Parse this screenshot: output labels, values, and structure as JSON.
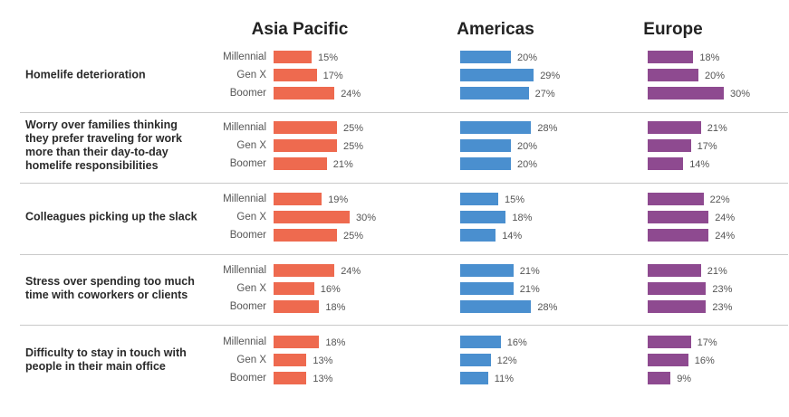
{
  "chart_data": {
    "type": "bar",
    "regions": [
      "Asia Pacific",
      "Americas",
      "Europe"
    ],
    "generations": [
      "Millennial",
      "Gen X",
      "Boomer"
    ],
    "colors": {
      "Asia Pacific": "#ee6a4f",
      "Americas": "#4a8fcf",
      "Europe": "#8e4a90"
    },
    "unit": "%",
    "categories": [
      {
        "label": "Homelife deterioration",
        "values": {
          "Asia Pacific": [
            15,
            17,
            24
          ],
          "Americas": [
            20,
            29,
            27
          ],
          "Europe": [
            18,
            20,
            30
          ]
        }
      },
      {
        "label": "Worry over families thinking\nthey prefer traveling for work\nmore than their day-to-day\nhomelife responsibilities",
        "values": {
          "Asia Pacific": [
            25,
            25,
            21
          ],
          "Americas": [
            28,
            20,
            20
          ],
          "Europe": [
            21,
            17,
            14
          ]
        }
      },
      {
        "label": "Colleagues picking up the slack",
        "values": {
          "Asia Pacific": [
            19,
            30,
            25
          ],
          "Americas": [
            15,
            18,
            14
          ],
          "Europe": [
            22,
            24,
            24
          ]
        }
      },
      {
        "label": "Stress over spending too much\ntime with coworkers or clients",
        "values": {
          "Asia Pacific": [
            24,
            16,
            18
          ],
          "Americas": [
            21,
            21,
            28
          ],
          "Europe": [
            21,
            23,
            23
          ]
        }
      },
      {
        "label": "Difficulty to stay in touch with\npeople in their main office",
        "values": {
          "Asia Pacific": [
            18,
            13,
            13
          ],
          "Americas": [
            16,
            12,
            11
          ],
          "Europe": [
            17,
            16,
            9
          ]
        }
      }
    ]
  }
}
